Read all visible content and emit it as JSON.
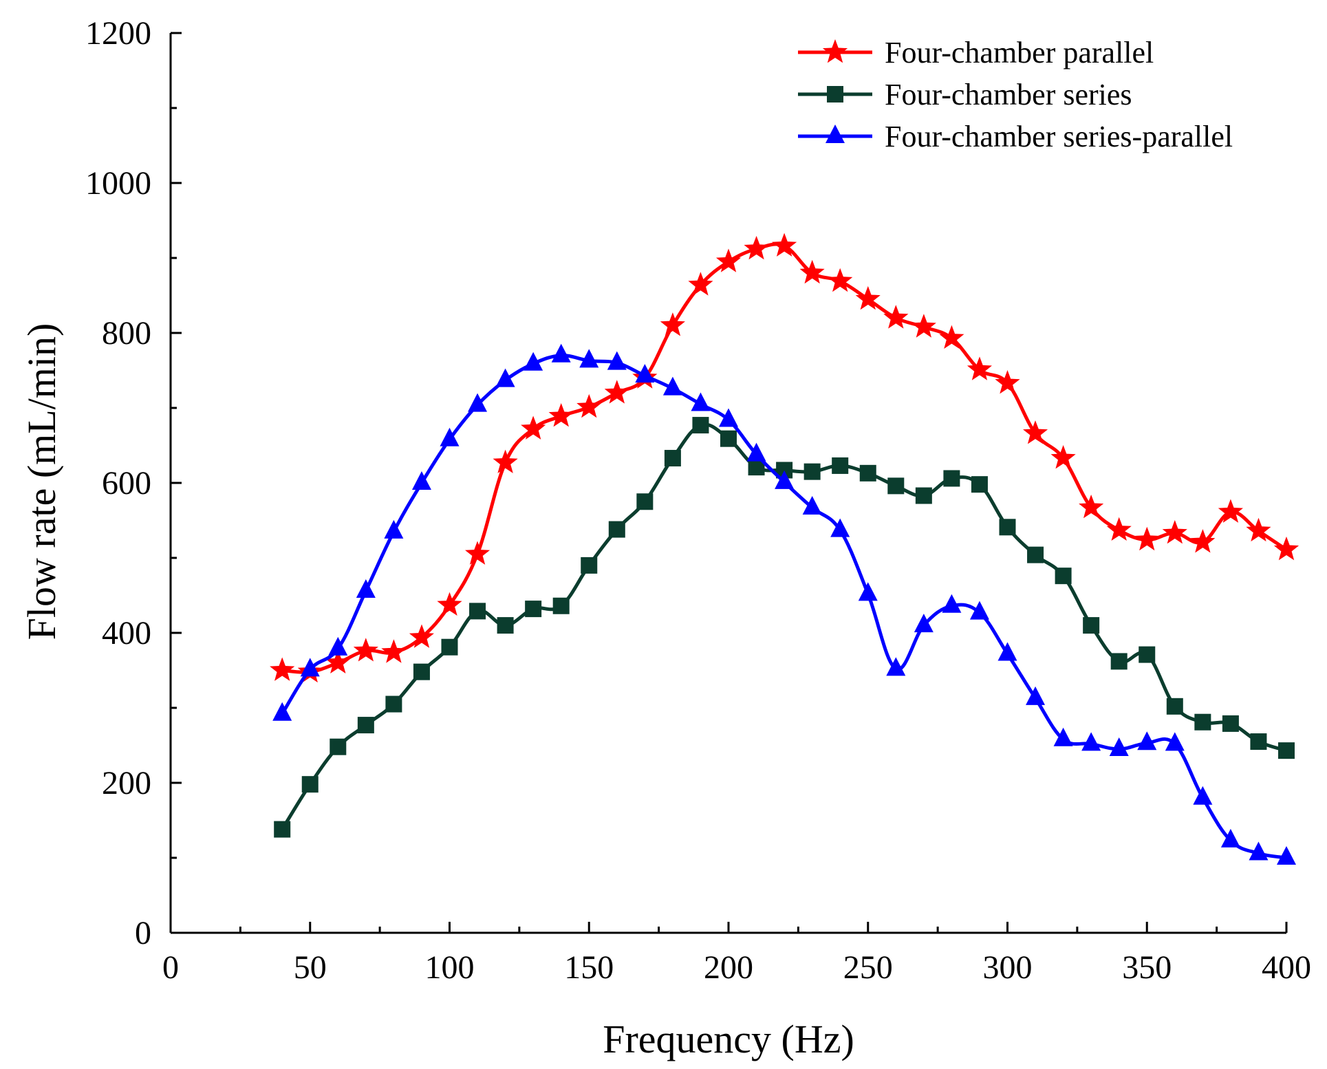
{
  "chart_data": {
    "type": "line",
    "title": "",
    "xlabel": "Frequency (Hz)",
    "ylabel": "Flow rate (mL/min)",
    "xlim": [
      0,
      400
    ],
    "ylim": [
      0,
      1200
    ],
    "x_ticks": [
      0,
      50,
      100,
      150,
      200,
      250,
      300,
      350,
      400
    ],
    "y_ticks": [
      0,
      200,
      400,
      600,
      800,
      1000,
      1200
    ],
    "grid": false,
    "legend_position": "top-right",
    "x": [
      40,
      50,
      60,
      70,
      80,
      90,
      100,
      110,
      120,
      130,
      140,
      150,
      160,
      170,
      180,
      190,
      200,
      210,
      220,
      230,
      240,
      250,
      260,
      270,
      280,
      290,
      300,
      310,
      320,
      330,
      340,
      350,
      360,
      370,
      380,
      390,
      400
    ],
    "series": [
      {
        "name": "Four-chamber parallel",
        "color": "#ff0000",
        "marker": "star",
        "values": [
          350,
          348,
          360,
          376,
          374,
          394,
          437,
          505,
          627,
          672,
          689,
          701,
          720,
          740,
          810,
          864,
          895,
          912,
          916,
          880,
          869,
          845,
          820,
          808,
          793,
          751,
          733,
          666,
          633,
          567,
          537,
          524,
          533,
          521,
          561,
          536,
          511
        ]
      },
      {
        "name": "Four-chamber series",
        "color": "#0b3d2e",
        "marker": "square",
        "values": [
          138,
          198,
          248,
          277,
          305,
          348,
          381,
          429,
          410,
          432,
          436,
          490,
          538,
          575,
          633,
          677,
          659,
          621,
          617,
          615,
          623,
          613,
          596,
          583,
          606,
          598,
          541,
          504,
          476,
          410,
          362,
          371,
          302,
          281,
          279,
          255,
          243
        ]
      },
      {
        "name": "Four-chamber series-parallel",
        "color": "#0000ff",
        "marker": "triangle",
        "values": [
          292,
          351,
          379,
          456,
          535,
          600,
          658,
          704,
          737,
          759,
          770,
          763,
          760,
          743,
          726,
          705,
          684,
          638,
          601,
          567,
          537,
          452,
          352,
          410,
          436,
          427,
          372,
          313,
          258,
          252,
          245,
          253,
          252,
          180,
          123,
          106,
          100
        ]
      }
    ]
  }
}
